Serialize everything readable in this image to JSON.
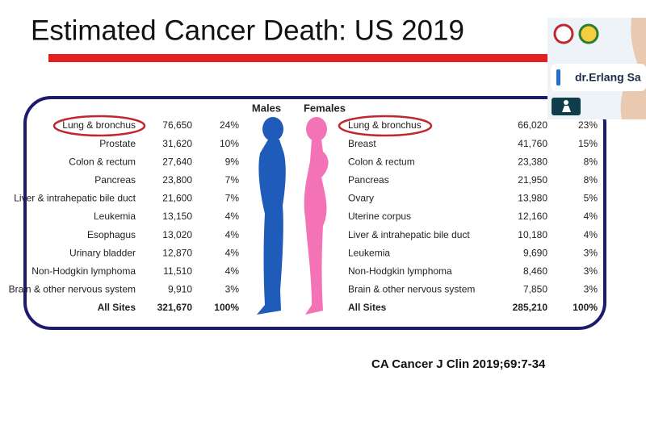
{
  "slide": {
    "title": "Estimated Cancer Death: US 2019",
    "citation": "CA Cancer J Clin 2019;69:7-34"
  },
  "table": {
    "males": {
      "header": "Males",
      "rows": [
        [
          "Lung & bronchus",
          "76,650",
          "24%"
        ],
        [
          "Prostate",
          "31,620",
          "10%"
        ],
        [
          "Colon & rectum",
          "27,640",
          "9%"
        ],
        [
          "Pancreas",
          "23,800",
          "7%"
        ],
        [
          "Liver & intrahepatic bile duct",
          "21,600",
          "7%"
        ],
        [
          "Leukemia",
          "13,150",
          "4%"
        ],
        [
          "Esophagus",
          "13,020",
          "4%"
        ],
        [
          "Urinary bladder",
          "12,870",
          "4%"
        ],
        [
          "Non-Hodgkin lymphoma",
          "11,510",
          "4%"
        ],
        [
          "Brain & other nervous system",
          "9,910",
          "3%"
        ],
        [
          "All Sites",
          "321,670",
          "100%"
        ]
      ]
    },
    "females": {
      "header": "Females",
      "rows": [
        [
          "Lung & bronchus",
          "66,020",
          "23%"
        ],
        [
          "Breast",
          "41,760",
          "15%"
        ],
        [
          "Colon & rectum",
          "23,380",
          "8%"
        ],
        [
          "Pancreas",
          "21,950",
          "8%"
        ],
        [
          "Ovary",
          "13,980",
          "5%"
        ],
        [
          "Uterine corpus",
          "12,160",
          "4%"
        ],
        [
          "Liver & intrahepatic bile duct",
          "10,180",
          "4%"
        ],
        [
          "Leukemia",
          "9,690",
          "3%"
        ],
        [
          "Non-Hodgkin lymphoma",
          "8,460",
          "3%"
        ],
        [
          "Brain & other nervous system",
          "7,850",
          "3%"
        ],
        [
          "All Sites",
          "285,210",
          "100%"
        ]
      ]
    }
  },
  "video_tile": {
    "participant": "dr.Erlang Sa"
  }
}
